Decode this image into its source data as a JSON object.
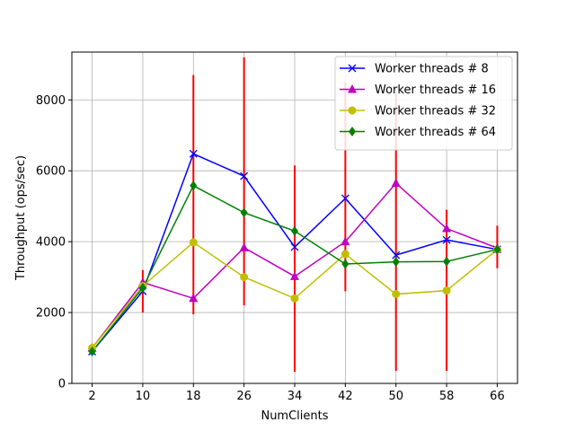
{
  "chart_data": {
    "type": "line",
    "title": "",
    "xlabel": "NumClients",
    "ylabel": "Throughput (ops/sec)",
    "x": [
      2,
      10,
      18,
      26,
      34,
      42,
      50,
      58,
      66
    ],
    "x_ticks": [
      "2",
      "10",
      "18",
      "26",
      "34",
      "42",
      "50",
      "58",
      "66"
    ],
    "ylim": [
      0,
      9350
    ],
    "y_ticks": [
      0,
      2000,
      4000,
      6000,
      8000
    ],
    "y_tick_labels": [
      "0",
      "2000",
      "4000",
      "6000",
      "8000"
    ],
    "grid": true,
    "legend_position": "top-right",
    "error_bars": {
      "color": "#ff0000",
      "low": [
        950,
        2000,
        1950,
        2200,
        330,
        2600,
        350,
        350,
        3250
      ],
      "high": [
        1050,
        3200,
        8700,
        9200,
        6150,
        8500,
        8200,
        4900,
        4450
      ]
    },
    "series": [
      {
        "name": "Worker threads # 8",
        "color": "#0000ff",
        "marker": "x",
        "values": [
          900,
          2600,
          6480,
          5850,
          3850,
          5220,
          3620,
          4050,
          3780
        ]
      },
      {
        "name": "Worker threads # 16",
        "color": "#c000c0",
        "marker": "triangle",
        "values": [
          1000,
          2850,
          2400,
          3830,
          3020,
          4000,
          5650,
          4370,
          3820
        ]
      },
      {
        "name": "Worker threads # 32",
        "color": "#bfbf00",
        "marker": "circle",
        "values": [
          1000,
          2750,
          3980,
          3000,
          2400,
          3650,
          2520,
          2620,
          3780
        ]
      },
      {
        "name": "Worker threads # 64",
        "color": "#008000",
        "marker": "diamond",
        "values": [
          900,
          2700,
          5580,
          4820,
          4300,
          3370,
          3430,
          3440,
          3780
        ]
      }
    ]
  }
}
